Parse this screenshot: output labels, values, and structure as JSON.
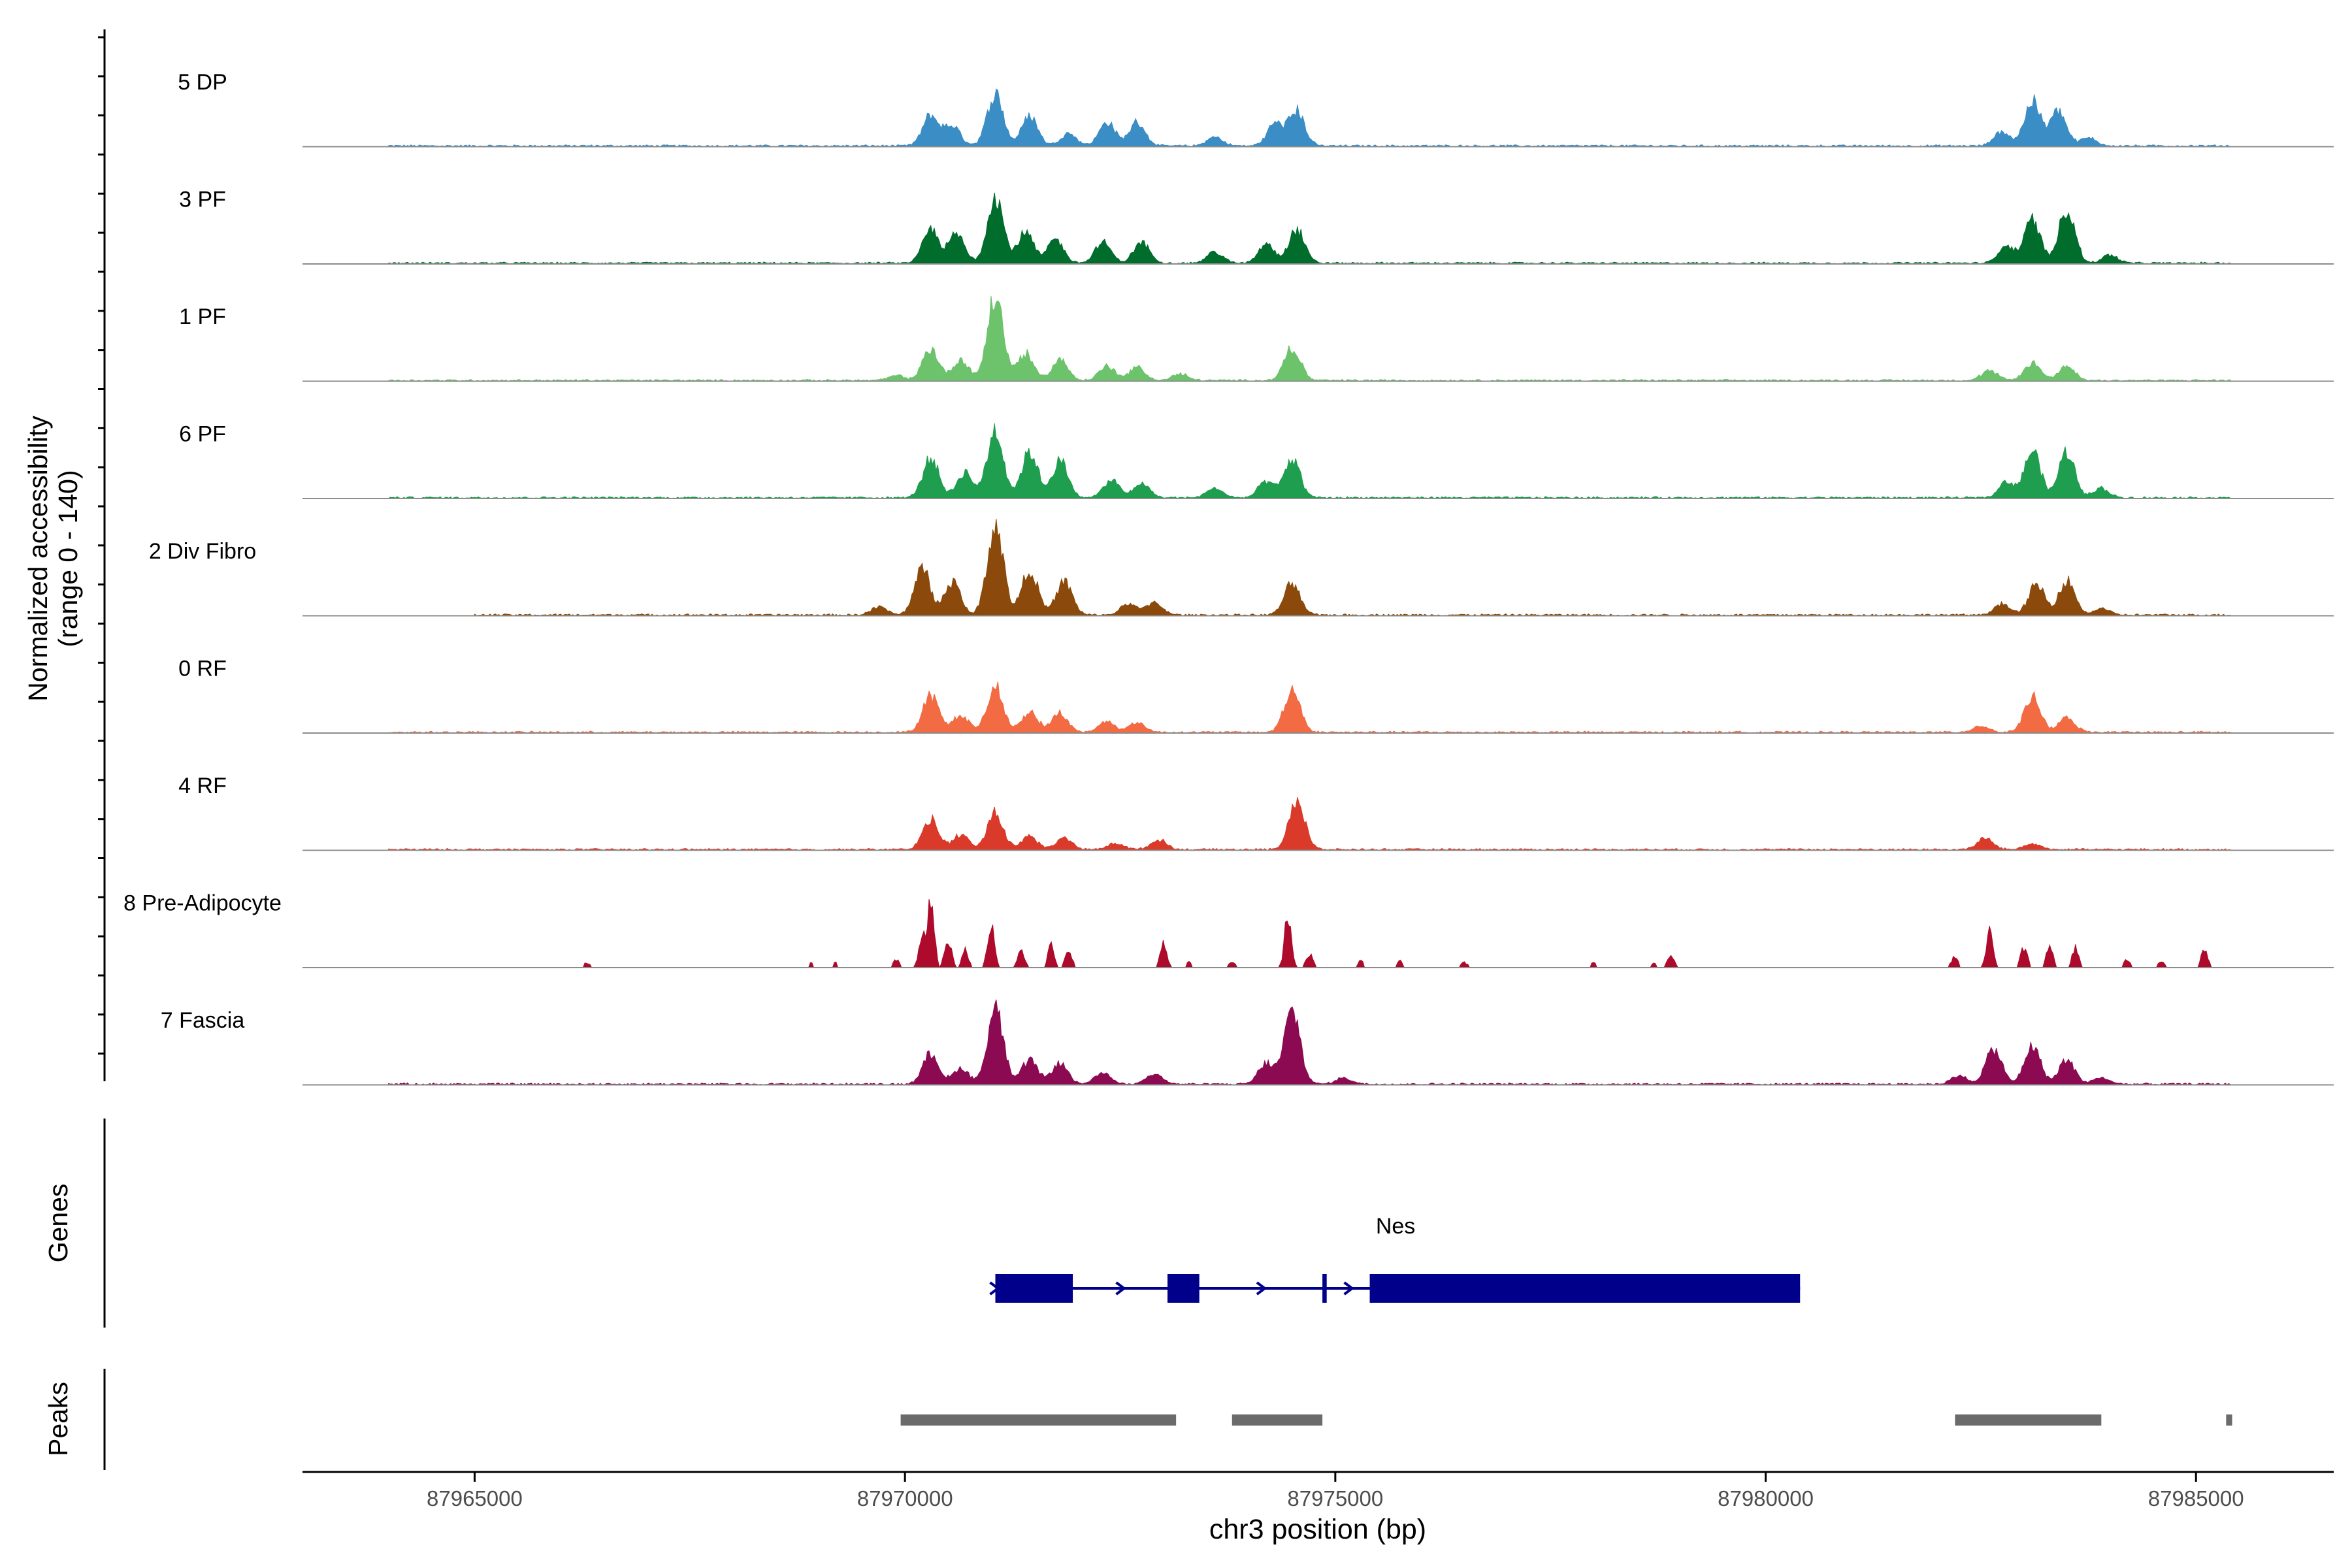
{
  "chart_data": {
    "type": "area",
    "title": "",
    "ylabel_line1": "Normalized accessibility",
    "ylabel_line2": "(range 0 - 140)",
    "y_range": [
      0,
      140
    ],
    "xlabel": "chr3 position (bp)",
    "x_range": [
      87963000,
      87986600
    ],
    "x_ticks": [
      87965000,
      87970000,
      87975000,
      87980000,
      87985000
    ],
    "x_tick_labels": [
      "87965000",
      "87970000",
      "87975000",
      "87980000",
      "87985000"
    ],
    "tracks": [
      {
        "name": "5 DP",
        "color": "#3a8dc5",
        "smooth": true,
        "data_start": 87964000,
        "data_end": 87985400,
        "peaks": [
          [
            87970300,
            38
          ],
          [
            87970550,
            25
          ],
          [
            87971050,
            66
          ],
          [
            87971450,
            38
          ],
          [
            87971900,
            16
          ],
          [
            87972350,
            30
          ],
          [
            87972700,
            30
          ],
          [
            87973600,
            11
          ],
          [
            87974300,
            28
          ],
          [
            87974550,
            44
          ],
          [
            87982750,
            18
          ],
          [
            87983100,
            56
          ],
          [
            87983400,
            44
          ],
          [
            87983750,
            10
          ]
        ]
      },
      {
        "name": "3 PF",
        "color": "#006d2c",
        "smooth": true,
        "data_start": 87964000,
        "data_end": 87985400,
        "peaks": [
          [
            87970300,
            42
          ],
          [
            87970600,
            36
          ],
          [
            87971050,
            86
          ],
          [
            87971400,
            38
          ],
          [
            87971750,
            30
          ],
          [
            87972300,
            26
          ],
          [
            87972750,
            26
          ],
          [
            87973600,
            14
          ],
          [
            87974200,
            24
          ],
          [
            87974550,
            42
          ],
          [
            87982800,
            22
          ],
          [
            87983100,
            54
          ],
          [
            87983500,
            70
          ],
          [
            87984000,
            10
          ]
        ]
      },
      {
        "name": "1 PF",
        "color": "#6cc36c",
        "smooth": true,
        "data_start": 87964000,
        "data_end": 87985400,
        "peaks": [
          [
            87969900,
            6
          ],
          [
            87970300,
            40
          ],
          [
            87970650,
            26
          ],
          [
            87971050,
            105
          ],
          [
            87971400,
            34
          ],
          [
            87971800,
            26
          ],
          [
            87972350,
            18
          ],
          [
            87972700,
            16
          ],
          [
            87973200,
            8
          ],
          [
            87974500,
            42
          ],
          [
            87982600,
            12
          ],
          [
            87983100,
            22
          ],
          [
            87983500,
            18
          ]
        ]
      },
      {
        "name": "6 PF",
        "color": "#1e9e4e",
        "smooth": true,
        "data_start": 87964000,
        "data_end": 87985400,
        "peaks": [
          [
            87970300,
            50
          ],
          [
            87970700,
            32
          ],
          [
            87971050,
            86
          ],
          [
            87971450,
            58
          ],
          [
            87971800,
            46
          ],
          [
            87972400,
            22
          ],
          [
            87972750,
            18
          ],
          [
            87973600,
            12
          ],
          [
            87974200,
            20
          ],
          [
            87974500,
            48
          ],
          [
            87982800,
            20
          ],
          [
            87983100,
            60
          ],
          [
            87983500,
            58
          ],
          [
            87983900,
            12
          ]
        ]
      },
      {
        "name": "2 Div Fibro",
        "color": "#8b4a0b",
        "smooth": true,
        "data_start": 87965000,
        "data_end": 87985400,
        "peaks": [
          [
            87969700,
            10
          ],
          [
            87970200,
            58
          ],
          [
            87970550,
            42
          ],
          [
            87971050,
            115
          ],
          [
            87971450,
            58
          ],
          [
            87971850,
            42
          ],
          [
            87972600,
            14
          ],
          [
            87972900,
            16
          ],
          [
            87974500,
            40
          ],
          [
            87982750,
            14
          ],
          [
            87983150,
            38
          ],
          [
            87983500,
            44
          ],
          [
            87983900,
            8
          ]
        ]
      },
      {
        "name": "0 RF",
        "color": "#f26b43",
        "smooth": true,
        "data_start": 87964000,
        "data_end": 87985400,
        "peaks": [
          [
            87970300,
            46
          ],
          [
            87970650,
            22
          ],
          [
            87971050,
            58
          ],
          [
            87971450,
            26
          ],
          [
            87971800,
            24
          ],
          [
            87972350,
            14
          ],
          [
            87972700,
            12
          ],
          [
            87974500,
            55
          ],
          [
            87982500,
            8
          ],
          [
            87983100,
            44
          ],
          [
            87983500,
            18
          ]
        ]
      },
      {
        "name": "4 RF",
        "color": "#d93a2a",
        "smooth": true,
        "data_start": 87964000,
        "data_end": 87985400,
        "peaks": [
          [
            87970300,
            38
          ],
          [
            87970650,
            18
          ],
          [
            87971050,
            46
          ],
          [
            87971450,
            16
          ],
          [
            87971850,
            14
          ],
          [
            87972450,
            8
          ],
          [
            87972950,
            12
          ],
          [
            87974550,
            62
          ],
          [
            87982550,
            14
          ],
          [
            87983100,
            8
          ]
        ]
      },
      {
        "name": "8 Pre-Adipocyte",
        "color": "#ad0a2c",
        "smooth": false,
        "data_start": 87966000,
        "data_end": 87985300,
        "peaks": [
          [
            87966300,
            6
          ],
          [
            87968900,
            6
          ],
          [
            87969200,
            6
          ],
          [
            87969900,
            10
          ],
          [
            87970200,
            36
          ],
          [
            87970300,
            85
          ],
          [
            87970500,
            38
          ],
          [
            87970700,
            22
          ],
          [
            87971000,
            55
          ],
          [
            87971350,
            24
          ],
          [
            87971700,
            26
          ],
          [
            87971900,
            22
          ],
          [
            87973000,
            30
          ],
          [
            87973300,
            8
          ],
          [
            87973800,
            6
          ],
          [
            87974450,
            62
          ],
          [
            87974700,
            18
          ],
          [
            87975300,
            8
          ],
          [
            87975750,
            8
          ],
          [
            87976500,
            6
          ],
          [
            87978000,
            6
          ],
          [
            87978700,
            6
          ],
          [
            87978900,
            14
          ],
          [
            87982200,
            14
          ],
          [
            87982600,
            44
          ],
          [
            87983000,
            26
          ],
          [
            87983300,
            28
          ],
          [
            87983600,
            24
          ],
          [
            87984200,
            10
          ],
          [
            87984600,
            8
          ],
          [
            87985100,
            24
          ]
        ]
      },
      {
        "name": "7 Fascia",
        "color": "#8c0a51",
        "smooth": true,
        "data_start": 87964000,
        "data_end": 87985400,
        "peaks": [
          [
            87970300,
            38
          ],
          [
            87970650,
            20
          ],
          [
            87971050,
            95
          ],
          [
            87971450,
            30
          ],
          [
            87971800,
            26
          ],
          [
            87972300,
            14
          ],
          [
            87972900,
            14
          ],
          [
            87974200,
            26
          ],
          [
            87974500,
            92
          ],
          [
            87975100,
            8
          ],
          [
            87982250,
            10
          ],
          [
            87982650,
            44
          ],
          [
            87983100,
            48
          ],
          [
            87983500,
            30
          ],
          [
            87983900,
            8
          ]
        ]
      }
    ],
    "genes_label": "Genes",
    "genes": [
      {
        "name": "Nes",
        "strand": "+",
        "start": 87971050,
        "end": 87980400,
        "exons": [
          [
            87971050,
            87971950
          ],
          [
            87973050,
            87973420
          ],
          [
            87974850,
            87974900
          ],
          [
            87975400,
            87980400
          ]
        ]
      }
    ],
    "peaks_label": "Peaks",
    "peak_regions": [
      [
        87969950,
        87973150
      ],
      [
        87973800,
        87974850
      ],
      [
        87982200,
        87983900
      ],
      [
        87985350,
        87985420
      ]
    ]
  },
  "colors": {
    "gene": "#00008b",
    "peak_region": "#6b6b6b",
    "baseline": "#8c8c8c",
    "axis": "#000000"
  }
}
